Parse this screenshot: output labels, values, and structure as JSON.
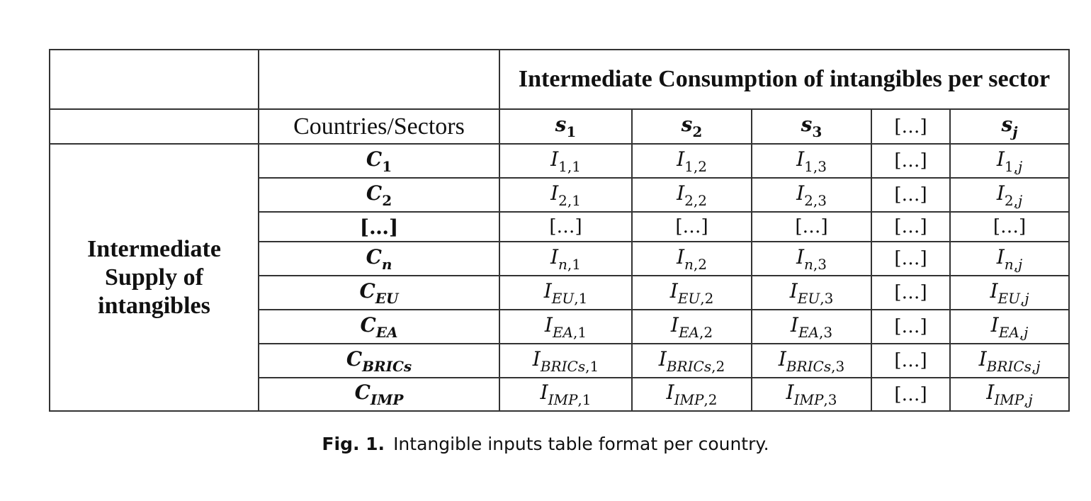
{
  "table": {
    "title": "Intermediate Consumption of intangibles per sector",
    "corner_label": "Countries/Sectors",
    "side_label": "Intermediate Supply of intangibles",
    "ellipsis": "[…]",
    "columns": [
      {
        "main": "s",
        "sub": "1",
        "sub_italic": false
      },
      {
        "main": "s",
        "sub": "2",
        "sub_italic": false
      },
      {
        "main": "s",
        "sub": "3",
        "sub_italic": false
      },
      {
        "ellipsis": "[…]"
      },
      {
        "main": "s",
        "sub": "j",
        "sub_italic": true
      }
    ],
    "rows": [
      {
        "main": "C",
        "sub": "1",
        "sub_italic": false,
        "cells": [
          {
            "main": "I",
            "sub_i": "",
            "sub_n": "1,1"
          },
          {
            "main": "I",
            "sub_i": "",
            "sub_n": "1,2"
          },
          {
            "main": "I",
            "sub_i": "",
            "sub_n": "1,3"
          },
          {
            "ellipsis": "[…]"
          },
          {
            "main": "I",
            "sub_i": "",
            "sub_n": "1,",
            "sub_tail": "j"
          }
        ]
      },
      {
        "main": "C",
        "sub": "2",
        "sub_italic": false,
        "cells": [
          {
            "main": "I",
            "sub_i": "",
            "sub_n": "2,1"
          },
          {
            "main": "I",
            "sub_i": "",
            "sub_n": "2,2"
          },
          {
            "main": "I",
            "sub_i": "",
            "sub_n": "2,3"
          },
          {
            "ellipsis": "[…]"
          },
          {
            "main": "I",
            "sub_i": "",
            "sub_n": "2,",
            "sub_tail": "j"
          }
        ]
      },
      {
        "ellipsis_row": true,
        "label": "[…]",
        "cells": [
          {
            "ellipsis": "[…]"
          },
          {
            "ellipsis": "[…]"
          },
          {
            "ellipsis": "[…]"
          },
          {
            "ellipsis": "[…]"
          },
          {
            "ellipsis": "[…]"
          }
        ]
      },
      {
        "main": "C",
        "sub": "n",
        "sub_italic": true,
        "cells": [
          {
            "main": "I",
            "sub_i": "n",
            "sub_n": ",1"
          },
          {
            "main": "I",
            "sub_i": "n",
            "sub_n": ",2"
          },
          {
            "main": "I",
            "sub_i": "n",
            "sub_n": ",3"
          },
          {
            "ellipsis": "[…]"
          },
          {
            "main": "I",
            "sub_i": "n",
            "sub_n": ",",
            "sub_tail": "j"
          }
        ]
      },
      {
        "main": "C",
        "sub": "EU",
        "sub_italic": true,
        "cells": [
          {
            "main": "I",
            "sub_i": "EU",
            "sub_n": ",1"
          },
          {
            "main": "I",
            "sub_i": "EU",
            "sub_n": ",2"
          },
          {
            "main": "I",
            "sub_i": "EU",
            "sub_n": ",3"
          },
          {
            "ellipsis": "[…]"
          },
          {
            "main": "I",
            "sub_i": "EU",
            "sub_n": ",",
            "sub_tail": "j"
          }
        ]
      },
      {
        "main": "C",
        "sub": "EA",
        "sub_italic": true,
        "cells": [
          {
            "main": "I",
            "sub_i": "EA",
            "sub_n": ",1"
          },
          {
            "main": "I",
            "sub_i": "EA",
            "sub_n": ",2"
          },
          {
            "main": "I",
            "sub_i": "EA",
            "sub_n": ",3"
          },
          {
            "ellipsis": "[…]"
          },
          {
            "main": "I",
            "sub_i": "EA",
            "sub_n": ",",
            "sub_tail": "j"
          }
        ]
      },
      {
        "main": "C",
        "sub": "BRICs",
        "sub_italic": true,
        "cells": [
          {
            "main": "I",
            "sub_i": "BRICs",
            "sub_n": ",1"
          },
          {
            "main": "I",
            "sub_i": "BRICs",
            "sub_n": ",2"
          },
          {
            "main": "I",
            "sub_i": "BRICs",
            "sub_n": ",3"
          },
          {
            "ellipsis": "[…]"
          },
          {
            "main": "I",
            "sub_i": "BRICs",
            "sub_n": ",",
            "sub_tail": "j"
          }
        ]
      },
      {
        "main": "C",
        "sub": "IMP",
        "sub_italic": true,
        "cells": [
          {
            "main": "I",
            "sub_i": "IMP",
            "sub_n": ",1"
          },
          {
            "main": "I",
            "sub_i": "IMP",
            "sub_n": ",2"
          },
          {
            "main": "I",
            "sub_i": "IMP",
            "sub_n": ",3"
          },
          {
            "ellipsis": "[…]"
          },
          {
            "main": "I",
            "sub_i": "IMP",
            "sub_n": ",",
            "sub_tail": "j"
          }
        ]
      }
    ]
  },
  "caption": {
    "label": "Fig. 1.",
    "text": "Intangible inputs table format per country."
  }
}
